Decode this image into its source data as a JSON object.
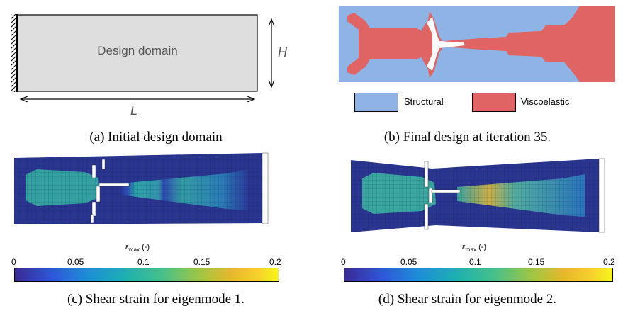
{
  "panel_a": {
    "domain_label": "Design domain",
    "height_label": "H",
    "length_label": "L",
    "caption": "(a) Initial design domain"
  },
  "panel_b": {
    "legend": [
      {
        "label": "Structural",
        "color": "#8eb4e6"
      },
      {
        "label": "Viscoelastic",
        "color": "#e06464"
      }
    ],
    "caption": "(b) Final design at iteration 35."
  },
  "panel_c": {
    "colorbar_label_main": "ε",
    "colorbar_label_sub": "max",
    "colorbar_label_unit": "(-)",
    "ticks": [
      "0",
      "0.05",
      "0.1",
      "0.15",
      "0.2"
    ],
    "caption": "(c) Shear strain for eigenmode 1."
  },
  "panel_d": {
    "colorbar_label_main": "ε",
    "colorbar_label_sub": "max",
    "colorbar_label_unit": "(-)",
    "ticks": [
      "0",
      "0.05",
      "0.1",
      "0.15",
      "0.2"
    ],
    "caption": "(d) Shear strain for eigenmode 2."
  },
  "colors": {
    "structural": "#8eb4e6",
    "viscoelastic": "#e06464",
    "domain_fill": "#dedede",
    "strain_low": "#2b3a9a",
    "strain_mid": "#1fa6a0",
    "strain_high": "#f9e33c"
  }
}
